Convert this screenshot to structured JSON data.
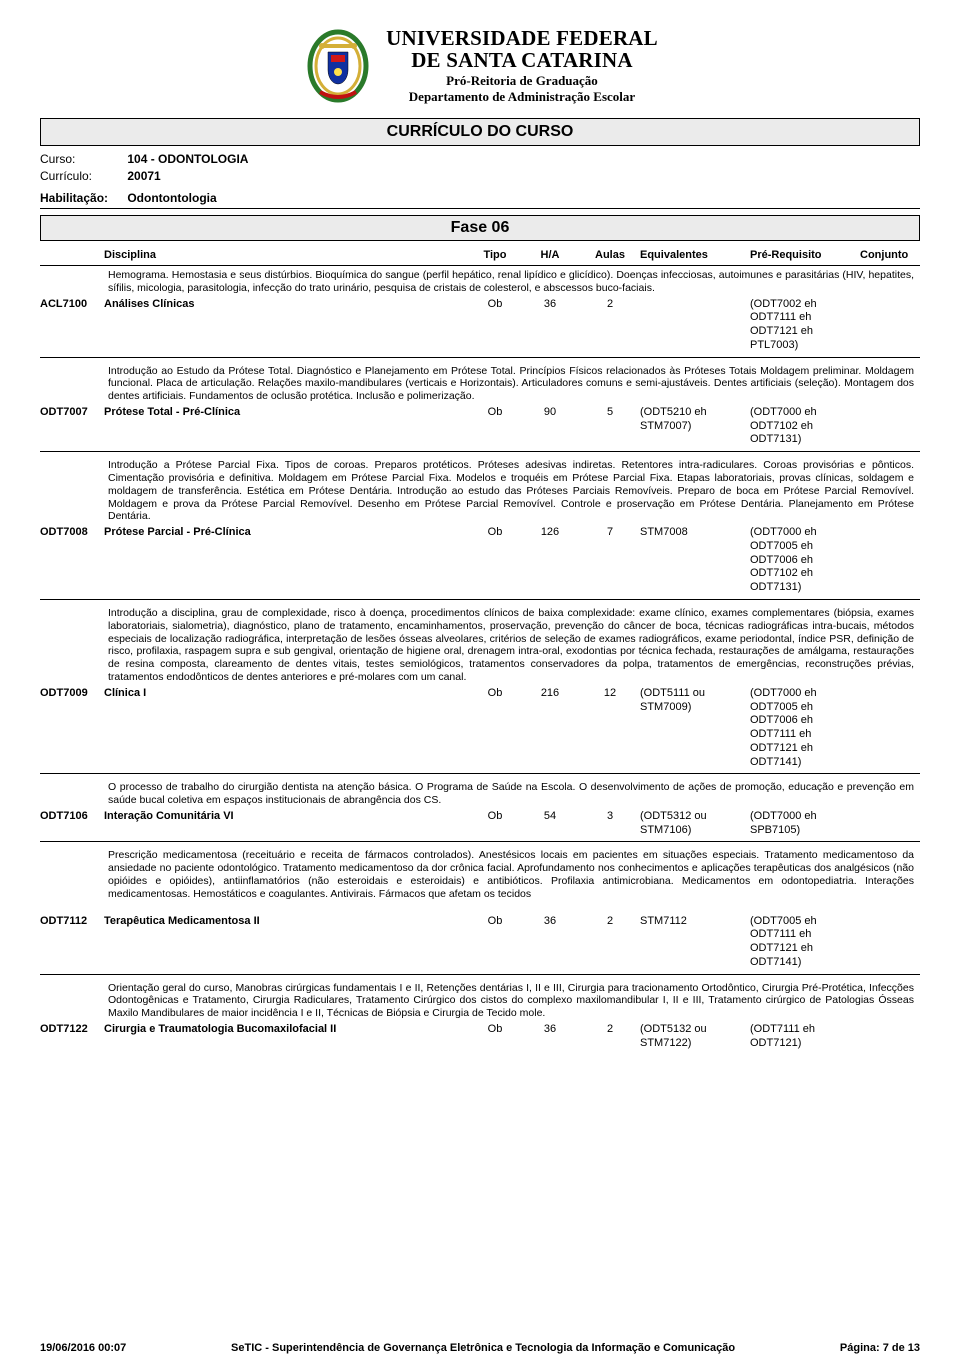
{
  "university": {
    "name_line1": "UNIVERSIDADE FEDERAL",
    "name_line2": "DE SANTA CATARINA",
    "sub1": "Pró-Reitoria de Graduação",
    "sub2": "Departamento de Administração Escolar"
  },
  "doc_title": "CURRÍCULO DO CURSO",
  "meta": {
    "curso_label": "Curso:",
    "curso_value": "104 - ODONTOLOGIA",
    "curriculo_label": "Currículo:",
    "curriculo_value": "20071",
    "habilitacao_label": "Habilitação:",
    "habilitacao_value": "Odontontologia"
  },
  "phase_title": "Fase 06",
  "columns": {
    "disciplina": "Disciplina",
    "tipo": "Tipo",
    "ha": "H/A",
    "aulas": "Aulas",
    "equivalentes": "Equivalentes",
    "prerequisito": "Pré-Requisito",
    "conjunto": "Conjunto"
  },
  "disciplines": [
    {
      "desc": "Hemograma. Hemostasia e seus distúrbios. Bioquímica do sangue (perfil hepático, renal lipídico e glicídico). Doenças infecciosas, autoimunes e parasitárias (HIV, hepatites, sífilis, micologia, parasitologia, infecção do trato urinário, pesquisa de cristais de colesterol, e abscessos buco-faciais.",
      "code": "ACL7100",
      "name": "Análises Clínicas",
      "tipo": "Ob",
      "ha": "36",
      "aulas": "2",
      "equiv": [],
      "prereq": [
        {
          "open": "(",
          "code": "ODT7002",
          "op": "eh",
          "close": ""
        },
        {
          "open": "",
          "code": "ODT7111",
          "op": "eh",
          "close": ""
        },
        {
          "open": "",
          "code": "ODT7121",
          "op": "eh",
          "close": ""
        },
        {
          "open": "",
          "code": "PTL7003)",
          "op": "",
          "close": ""
        }
      ]
    },
    {
      "desc": "Introdução ao Estudo da Prótese Total. Diagnóstico e Planejamento em Prótese Total. Princípios Físicos relacionados às Próteses Totais Moldagem preliminar.\nMoldagem funcional. Placa de articulação. Relações maxilo-mandibulares (verticais e Horizontais). Articuladores comuns e semi-ajustáveis.\nDentes artificiais (seleção). Montagem dos dentes artificiais. Fundamentos de oclusão protética. Inclusão e polimerização.",
      "code": "ODT7007",
      "name": "Prótese Total - Pré-Clínica",
      "tipo": "Ob",
      "ha": "90",
      "aulas": "5",
      "equiv": [
        {
          "open": "(",
          "code": "ODT5210",
          "op": "eh",
          "close": ""
        },
        {
          "open": "",
          "code": "STM7007)",
          "op": "",
          "close": ""
        }
      ],
      "prereq": [
        {
          "open": "(",
          "code": "ODT7000",
          "op": "eh",
          "close": ""
        },
        {
          "open": "",
          "code": "ODT7102",
          "op": "eh",
          "close": ""
        },
        {
          "open": "",
          "code": "ODT7131)",
          "op": "",
          "close": ""
        }
      ]
    },
    {
      "desc": "Introdução a Prótese Parcial Fixa. Tipos de coroas. Preparos protéticos. Próteses adesivas indiretas. Retentores intra-radiculares. Coroas provisórias e pônticos. Cimentação provisória e definitiva. Moldagem em Prótese Parcial Fixa. Modelos e troquéis em Prótese Parcial Fixa. Etapas laboratoriais, provas clínicas, soldagem e moldagem de transferência. Estética em Prótese Dentária. Introdução ao estudo das Próteses Parciais Removíveis. Preparo de boca em Prótese Parcial Removível. Moldagem e prova da Prótese Parcial Removível. Desenho em Prótese Parcial Removível. Controle e proservação em Prótese Dentária. Planejamento em Prótese Dentária.",
      "code": "ODT7008",
      "name": "Prótese Parcial - Pré-Clínica",
      "tipo": "Ob",
      "ha": "126",
      "aulas": "7",
      "equiv": [
        {
          "open": "",
          "code": "STM7008",
          "op": "",
          "close": ""
        }
      ],
      "prereq": [
        {
          "open": "(",
          "code": "ODT7000",
          "op": "eh",
          "close": ""
        },
        {
          "open": "",
          "code": "ODT7005",
          "op": "eh",
          "close": ""
        },
        {
          "open": "",
          "code": "ODT7006",
          "op": "eh",
          "close": ""
        },
        {
          "open": "",
          "code": "ODT7102",
          "op": "eh",
          "close": ""
        },
        {
          "open": "",
          "code": "ODT7131)",
          "op": "",
          "close": ""
        }
      ]
    },
    {
      "desc": "Introdução a disciplina, grau de complexidade, risco à doença, procedimentos clínicos de baixa complexidade: exame clínico, exames complementares (biópsia, exames laboratoriais, sialometria), diagnóstico, plano de tratamento, encaminhamentos, proservação, prevenção do câncer de boca, técnicas radiográficas intra-bucais, métodos especiais de localização radiográfica, interpretação de lesões ósseas alveolares, critérios de seleção de exames radiográficos, exame periodontal, índice PSR, definição de risco, profilaxia, raspagem supra e sub gengival, orientação de higiene oral, drenagem intra-oral, exodontias por técnica fechada, restaurações de amálgama, restaurações de resina composta, clareamento de dentes vitais, testes semiológicos, tratamentos conservadores da polpa, tratamentos de emergências, reconstruções prévias, tratamentos endodônticos de dentes anteriores e pré-molares com um canal.",
      "code": "ODT7009",
      "name": "Clínica I",
      "tipo": "Ob",
      "ha": "216",
      "aulas": "12",
      "equiv": [
        {
          "open": "(",
          "code": "ODT5111",
          "op": "ou",
          "close": ""
        },
        {
          "open": "",
          "code": "STM7009)",
          "op": "",
          "close": ""
        }
      ],
      "prereq": [
        {
          "open": "(",
          "code": "ODT7000",
          "op": "eh",
          "close": ""
        },
        {
          "open": "",
          "code": "ODT7005",
          "op": "eh",
          "close": ""
        },
        {
          "open": "",
          "code": "ODT7006",
          "op": "eh",
          "close": ""
        },
        {
          "open": "",
          "code": "ODT7111",
          "op": "eh",
          "close": ""
        },
        {
          "open": "",
          "code": "ODT7121",
          "op": "eh",
          "close": ""
        },
        {
          "open": "",
          "code": "ODT7141)",
          "op": "",
          "close": ""
        }
      ]
    },
    {
      "desc": "O processo de trabalho do cirurgião dentista na atenção básica. O Programa de Saúde na Escola. O desenvolvimento de ações de promoção, educação e prevenção em saúde bucal coletiva em espaços institucionais de abrangência dos CS.",
      "code": "ODT7106",
      "name": "Interação Comunitária VI",
      "tipo": "Ob",
      "ha": "54",
      "aulas": "3",
      "equiv": [
        {
          "open": "(",
          "code": "ODT5312",
          "op": "ou",
          "close": ""
        },
        {
          "open": "",
          "code": "STM7106)",
          "op": "",
          "close": ""
        }
      ],
      "prereq": [
        {
          "open": "(",
          "code": "ODT7000",
          "op": "eh",
          "close": ""
        },
        {
          "open": "",
          "code": "SPB7105)",
          "op": "",
          "close": ""
        }
      ]
    },
    {
      "desc": "Prescrição medicamentosa (receituário e receita de fármacos controlados). Anestésicos locais em pacientes em situações especiais. Tratamento medicamentoso da ansiedade no paciente odontológico. Tratamento medicamentoso da dor crônica facial. Aprofundamento nos conhecimentos e aplicações terapêuticas dos analgésicos (não opióides e opióides), antiinflamatórios (não esteroidais e esteroidais) e antibióticos. Profilaxia antimicrobiana. Medicamentos em odontopediatria. Interações medicamentosas. Hemostáticos e coagulantes. Antivirais. Fármacos que afetam os tecidos",
      "code": "ODT7112",
      "name": "Terapêutica Medicamentosa II",
      "tipo": "Ob",
      "ha": "36",
      "aulas": "2",
      "equiv": [
        {
          "open": "",
          "code": "STM7112",
          "op": "",
          "close": ""
        }
      ],
      "prereq": [
        {
          "open": "(",
          "code": "ODT7005",
          "op": "eh",
          "close": ""
        },
        {
          "open": "",
          "code": "ODT7111",
          "op": "eh",
          "close": ""
        },
        {
          "open": "",
          "code": "ODT7121",
          "op": "eh",
          "close": ""
        },
        {
          "open": "",
          "code": "ODT7141)",
          "op": "",
          "close": ""
        }
      ],
      "extra_gap": true
    },
    {
      "desc": "Orientação geral do curso, Manobras cirúrgicas fundamentais I e II, Retenções dentárias I, II e III, Cirurgia para tracionamento Ortodôntico, Cirurgia Pré-Protética, Infecções Odontogênicas e Tratamento, Cirurgia Radiculares, Tratamento Cirúrgico dos cistos do complexo maxilomandibular I, II e III, Tratamento cirúrgico de Patologias Ósseas Maxilo Mandibulares de maior incidência I e II, Técnicas de Biópsia e Cirurgia de Tecido mole.",
      "code": "ODT7122",
      "name": "Cirurgia e Traumatologia Bucomaxilofacial II",
      "tipo": "Ob",
      "ha": "36",
      "aulas": "2",
      "equiv": [
        {
          "open": "(",
          "code": "ODT5132",
          "op": "ou",
          "close": ""
        },
        {
          "open": "",
          "code": "STM7122)",
          "op": "",
          "close": ""
        }
      ],
      "prereq": [
        {
          "open": "(",
          "code": "ODT7111",
          "op": "eh",
          "close": ""
        },
        {
          "open": "",
          "code": "ODT7121)",
          "op": "",
          "close": ""
        }
      ],
      "no_border": true
    }
  ],
  "footer": {
    "date": "19/06/2016 00:07",
    "center": "SeTIC - Superintendência de Governança Eletrônica e Tecnologia da Informação e Comunicação",
    "page": "Página: 7  de   13"
  },
  "colors": {
    "bar_bg": "#ebebeb",
    "border": "#000000",
    "text": "#000000"
  }
}
